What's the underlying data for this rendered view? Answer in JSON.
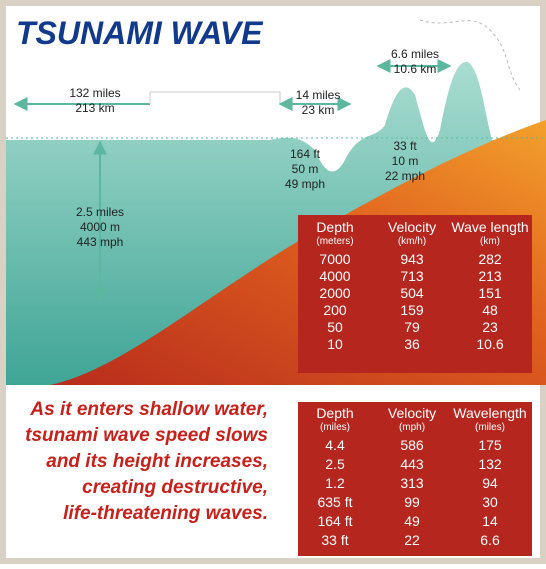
{
  "title": "TSUNAMI WAVE",
  "annotations": [
    {
      "lines": [
        "132 miles",
        "213 km"
      ]
    },
    {
      "lines": [
        "14 miles",
        "23 km"
      ]
    },
    {
      "lines": [
        "6.6 miles",
        "10.6 km"
      ]
    },
    {
      "lines": [
        "164 ft",
        "50 m",
        "49 mph"
      ]
    },
    {
      "lines": [
        "33 ft",
        "10 m",
        "22 mph"
      ]
    },
    {
      "lines": [
        "2.5 miles",
        "4000 m",
        "443 mph"
      ]
    }
  ],
  "table_metric": {
    "headers": [
      {
        "label": "Depth",
        "unit": "(meters)"
      },
      {
        "label": "Velocity",
        "unit": "(km/h)"
      },
      {
        "label": "Wave length",
        "unit": "(km)"
      }
    ],
    "rows": [
      [
        "7000",
        "943",
        "282"
      ],
      [
        "4000",
        "713",
        "213"
      ],
      [
        "2000",
        "504",
        "151"
      ],
      [
        "200",
        "159",
        "48"
      ],
      [
        "50",
        "79",
        "23"
      ],
      [
        "10",
        "36",
        "10.6"
      ]
    ]
  },
  "caption": [
    "As it enters shallow water,",
    "tsunami wave speed slows",
    "and its height increases,",
    "creating destructive,",
    "life-threatening waves."
  ],
  "table_imperial": {
    "headers": [
      {
        "label": "Depth",
        "unit": "(miles)"
      },
      {
        "label": "Velocity",
        "unit": "(mph)"
      },
      {
        "label": "Wavelength",
        "unit": "(miles)"
      }
    ],
    "rows": [
      [
        "4.4",
        "586",
        "175"
      ],
      [
        "2.5",
        "443",
        "132"
      ],
      [
        "1.2",
        "313",
        "94"
      ],
      [
        "635 ft",
        "99",
        "30"
      ],
      [
        "164 ft",
        "49",
        "14"
      ],
      [
        "33 ft",
        "22",
        "6.6"
      ]
    ]
  }
}
